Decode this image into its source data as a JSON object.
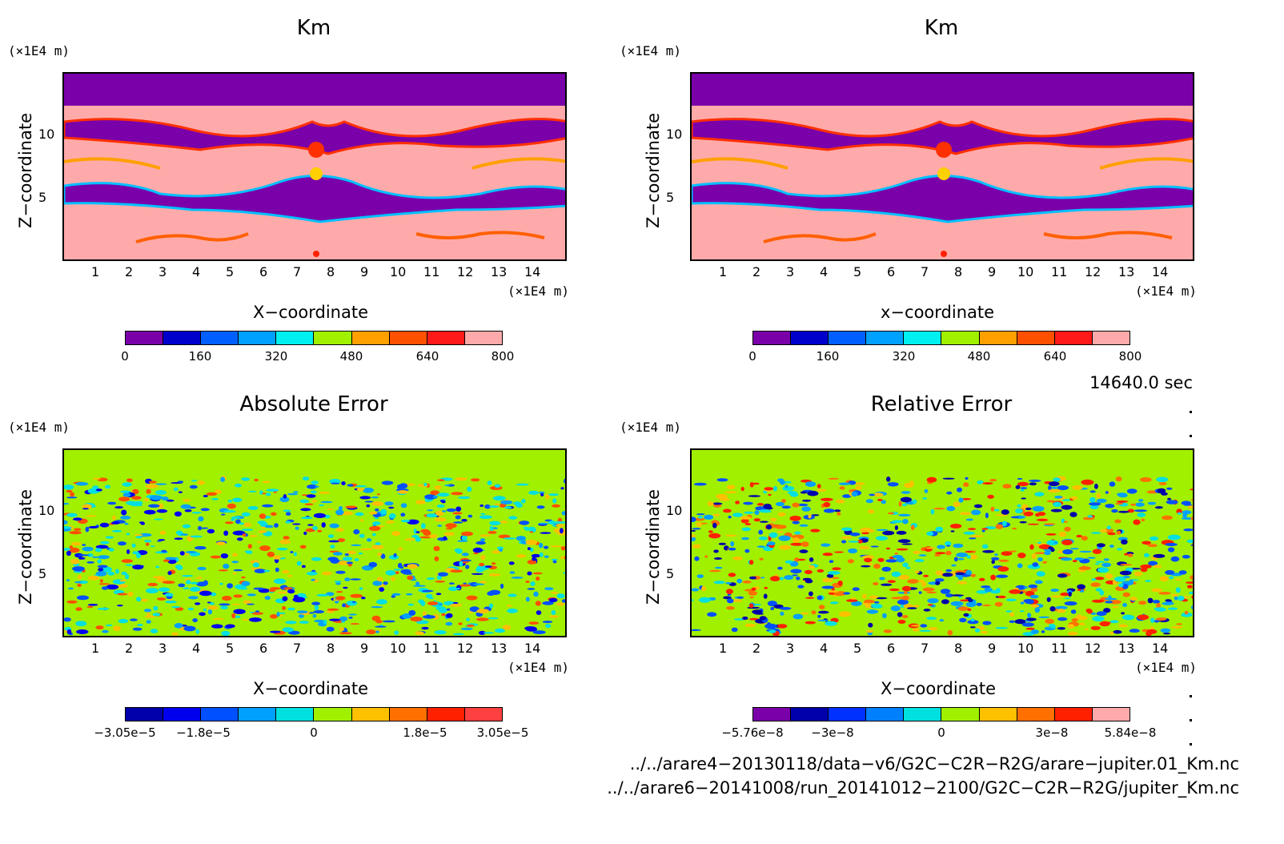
{
  "panels": [
    {
      "title": "Km",
      "xlabel": "X−coordinate",
      "ylabel": "Z−coordinate",
      "y_unit": "(×1E4 m)",
      "x_unit": "(×1E4 m)",
      "cbar_labels": [
        "0",
        "160",
        "320",
        "480",
        "640",
        "800"
      ],
      "cbar_colors": [
        "#7a00aa",
        "#0000cc",
        "#0060ff",
        "#00a0ff",
        "#00f0f0",
        "#a0f000",
        "#ffa000",
        "#ff5000",
        "#ff1a1a",
        "#ffaaaa"
      ]
    },
    {
      "title": "Km",
      "xlabel": "x−coordinate",
      "ylabel": "Z−coordinate",
      "y_unit": "(×1E4 m)",
      "x_unit": "(×1E4 m)",
      "cbar_labels": [
        "0",
        "160",
        "320",
        "480",
        "640",
        "800"
      ],
      "cbar_colors": [
        "#7a00aa",
        "#0000cc",
        "#0060ff",
        "#00a0ff",
        "#00f0f0",
        "#a0f000",
        "#ffa000",
        "#ff5000",
        "#ff1a1a",
        "#ffaaaa"
      ]
    },
    {
      "title": "Absolute Error",
      "xlabel": "X−coordinate",
      "ylabel": "Z−coordinate",
      "y_unit": "(×1E4 m)",
      "x_unit": "(×1E4 m)",
      "cbar_labels": [
        "−3.05e−5",
        "−1.8e−5",
        "0",
        "1.8e−5",
        "3.05e−5"
      ],
      "cbar_colors": [
        "#0000aa",
        "#0000ee",
        "#0050ff",
        "#00a0ff",
        "#00e0e0",
        "#a0f000",
        "#ffc000",
        "#ff7000",
        "#ff2000",
        "#ff4040"
      ]
    },
    {
      "title": "Relative Error",
      "xlabel": "X−coordinate",
      "ylabel": "Z−coordinate",
      "y_unit": "(×1E4 m)",
      "x_unit": "(×1E4 m)",
      "cbar_labels": [
        "−5.76e−8",
        "−3e−8",
        "0",
        "3e−8",
        "5.84e−8"
      ],
      "cbar_colors": [
        "#7a00aa",
        "#0000aa",
        "#0030ff",
        "#0080ff",
        "#00e0e0",
        "#a0f000",
        "#ffc000",
        "#ff7000",
        "#ff2000",
        "#ffaaaa"
      ]
    }
  ],
  "x_ticks": [
    "1",
    "2",
    "3",
    "4",
    "5",
    "6",
    "7",
    "8",
    "9",
    "10",
    "11",
    "12",
    "13",
    "14"
  ],
  "y_ticks": [
    "5",
    "10"
  ],
  "time_label": "14640.0 sec",
  "files": [
    "../../arare4−20130118/data−v6/G2C−C2R−R2G/arare−jupiter.01_Km.nc",
    "../../arare6−20141008/run_20141012−2100/G2C−C2R−R2G/jupiter_Km.nc"
  ],
  "chart_data": [
    {
      "type": "heatmap",
      "title": "Km",
      "xlabel": "X−coordinate",
      "ylabel": "Z−coordinate",
      "x_unit": "(×1E4 m)",
      "y_unit": "(×1E4 m)",
      "xlim": [
        0,
        15
      ],
      "ylim": [
        0,
        15
      ],
      "colorbar": {
        "min": 0,
        "max": 800,
        "ticks": [
          0,
          160,
          320,
          480,
          640,
          800
        ]
      }
    },
    {
      "type": "heatmap",
      "title": "Km",
      "xlabel": "x−coordinate",
      "ylabel": "Z−coordinate",
      "x_unit": "(×1E4 m)",
      "y_unit": "(×1E4 m)",
      "xlim": [
        0,
        15
      ],
      "ylim": [
        0,
        15
      ],
      "colorbar": {
        "min": 0,
        "max": 800,
        "ticks": [
          0,
          160,
          320,
          480,
          640,
          800
        ]
      }
    },
    {
      "type": "heatmap",
      "title": "Absolute Error",
      "xlabel": "X−coordinate",
      "ylabel": "Z−coordinate",
      "x_unit": "(×1E4 m)",
      "y_unit": "(×1E4 m)",
      "xlim": [
        0,
        15
      ],
      "ylim": [
        0,
        15
      ],
      "colorbar": {
        "min": -3.05e-05,
        "max": 3.05e-05,
        "ticks": [
          -3.05e-05,
          -1.8e-05,
          0,
          1.8e-05,
          3.05e-05
        ]
      }
    },
    {
      "type": "heatmap",
      "title": "Relative Error",
      "xlabel": "X−coordinate",
      "ylabel": "Z−coordinate",
      "x_unit": "(×1E4 m)",
      "y_unit": "(×1E4 m)",
      "xlim": [
        0,
        15
      ],
      "ylim": [
        0,
        15
      ],
      "colorbar": {
        "min": -5.76e-08,
        "max": 5.84e-08,
        "ticks": [
          -5.76e-08,
          -3e-08,
          0,
          3e-08,
          5.84e-08
        ]
      }
    }
  ]
}
